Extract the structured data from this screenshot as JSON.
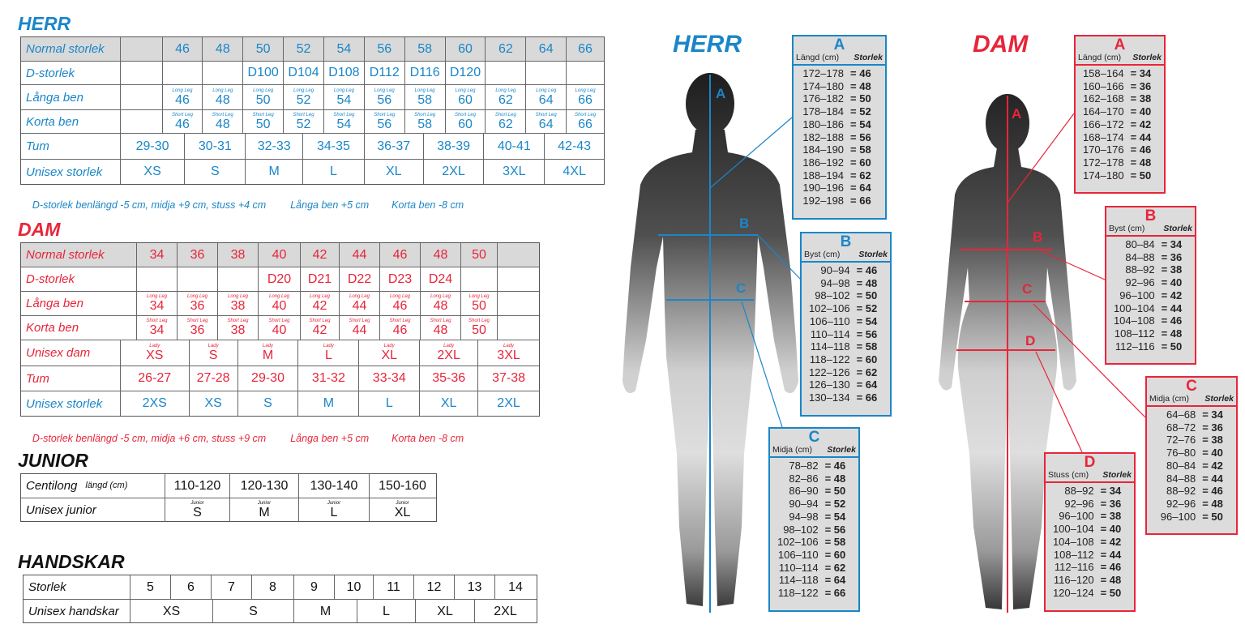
{
  "colors": {
    "herr": "#1a86c8",
    "dam": "#e8253a"
  },
  "herr": {
    "title": "HERR",
    "rows": [
      [
        "Normal storlek",
        "",
        "46",
        "48",
        "50",
        "52",
        "54",
        "56",
        "58",
        "60",
        "62",
        "64",
        "66"
      ],
      [
        "D-storlek",
        "",
        "",
        "",
        "D100",
        "D104",
        "D108",
        "D112",
        "D116",
        "D120",
        "",
        "",
        ""
      ],
      [
        "Långa ben",
        "",
        {
          "s": "Long Leg",
          "v": "46"
        },
        {
          "s": "Long Leg",
          "v": "48"
        },
        {
          "s": "Long Leg",
          "v": "50"
        },
        {
          "s": "Long Leg",
          "v": "52"
        },
        {
          "s": "Long Leg",
          "v": "54"
        },
        {
          "s": "Long Leg",
          "v": "56"
        },
        {
          "s": "Long Leg",
          "v": "58"
        },
        {
          "s": "Long Leg",
          "v": "60"
        },
        {
          "s": "Long Leg",
          "v": "62"
        },
        {
          "s": "Long Leg",
          "v": "64"
        },
        {
          "s": "Long Leg",
          "v": "66"
        }
      ],
      [
        "Korta ben",
        "",
        {
          "s": "Short Leg",
          "v": "46"
        },
        {
          "s": "Short Leg",
          "v": "48"
        },
        {
          "s": "Short Leg",
          "v": "50"
        },
        {
          "s": "Short Leg",
          "v": "52"
        },
        {
          "s": "Short Leg",
          "v": "54"
        },
        {
          "s": "Short Leg",
          "v": "56"
        },
        {
          "s": "Short Leg",
          "v": "58"
        },
        {
          "s": "Short Leg",
          "v": "60"
        },
        {
          "s": "Short Leg",
          "v": "62"
        },
        {
          "s": "Short Leg",
          "v": "64"
        },
        {
          "s": "Short Leg",
          "v": "66"
        }
      ],
      [
        "Tum",
        "29-30",
        "30-31",
        "32-33",
        "34-35",
        "36-37",
        "38-39",
        "40-41",
        "42-43"
      ],
      [
        "Unisex storlek",
        "XS",
        "S",
        "M",
        "L",
        "XL",
        "2XL",
        "3XL",
        "4XL"
      ]
    ],
    "notes": [
      "D-storlek benlängd -5 cm, midja +9 cm, stuss +4 cm",
      "Långa ben +5 cm",
      "Korta ben -8 cm"
    ]
  },
  "dam": {
    "title": "DAM",
    "rows": [
      [
        "Normal storlek",
        "34",
        "36",
        "38",
        "40",
        "42",
        "44",
        "46",
        "48",
        "50",
        ""
      ],
      [
        "D-storlek",
        "",
        "",
        "",
        "D20",
        "D21",
        "D22",
        "D23",
        "D24",
        "",
        ""
      ],
      [
        "Långa ben",
        {
          "s": "Long Leg",
          "v": "34"
        },
        {
          "s": "Long Leg",
          "v": "36"
        },
        {
          "s": "Long Leg",
          "v": "38"
        },
        {
          "s": "Long Leg",
          "v": "40"
        },
        {
          "s": "Long Leg",
          "v": "42"
        },
        {
          "s": "Long Leg",
          "v": "44"
        },
        {
          "s": "Long Leg",
          "v": "46"
        },
        {
          "s": "Long Leg",
          "v": "48"
        },
        {
          "s": "Long Leg",
          "v": "50"
        },
        ""
      ],
      [
        "Korta ben",
        {
          "s": "Short Leg",
          "v": "34"
        },
        {
          "s": "Short Leg",
          "v": "36"
        },
        {
          "s": "Short Leg",
          "v": "38"
        },
        {
          "s": "Short Leg",
          "v": "40"
        },
        {
          "s": "Short Leg",
          "v": "42"
        },
        {
          "s": "Short Leg",
          "v": "44"
        },
        {
          "s": "Short Leg",
          "v": "46"
        },
        {
          "s": "Short Leg",
          "v": "48"
        },
        {
          "s": "Short Leg",
          "v": "50"
        },
        ""
      ],
      [
        "Unisex dam",
        {
          "s": "Lady",
          "v": "XS"
        },
        {
          "s": "Lady",
          "v": "S"
        },
        {
          "s": "Lady",
          "v": "M"
        },
        {
          "s": "Lady",
          "v": "L"
        },
        {
          "s": "Lady",
          "v": "XL"
        },
        {
          "s": "Lady",
          "v": "2XL"
        },
        {
          "s": "Lady",
          "v": "3XL"
        }
      ],
      [
        "Tum",
        "26-27",
        "27-28",
        "29-30",
        "31-32",
        "33-34",
        "35-36",
        "37-38"
      ],
      [
        "Unisex storlek",
        "2XS",
        "XS",
        "S",
        "M",
        "L",
        "XL",
        "2XL"
      ]
    ],
    "notes": [
      "D-storlek benlängd -5 cm, midja +6 cm, stuss +9 cm",
      "Långa ben +5 cm",
      "Korta ben -8 cm"
    ]
  },
  "junior": {
    "title": "JUNIOR",
    "rows": [
      [
        {
          "l": "Centilong",
          "ls": "längd (cm)"
        },
        "110-120",
        "120-130",
        "130-140",
        "150-160"
      ],
      [
        "Unisex junior",
        {
          "s": "Junior",
          "v": "S"
        },
        {
          "s": "Junior",
          "v": "M"
        },
        {
          "s": "Junior",
          "v": "L"
        },
        {
          "s": "Junior",
          "v": "XL"
        }
      ]
    ]
  },
  "handskar": {
    "title": "HANDSKAR",
    "rows": [
      [
        "Storlek",
        "5",
        "6",
        "7",
        "8",
        "9",
        "10",
        "11",
        "12",
        "13",
        "14"
      ],
      [
        "Unisex handskar",
        "XS",
        "S",
        "M",
        "L",
        "XL",
        "2XL"
      ]
    ]
  },
  "figures": {
    "herr": {
      "title": "HERR",
      "labels": [
        "A",
        "B",
        "C"
      ],
      "boxes": [
        {
          "letter": "A",
          "col1": "Längd (cm)",
          "col2": "Storlek",
          "rows": [
            [
              "172–178",
              "= 46"
            ],
            [
              "174–180",
              "= 48"
            ],
            [
              "176–182",
              "= 50"
            ],
            [
              "178–184",
              "= 52"
            ],
            [
              "180–186",
              "= 54"
            ],
            [
              "182–188",
              "= 56"
            ],
            [
              "184–190",
              "= 58"
            ],
            [
              "186–192",
              "= 60"
            ],
            [
              "188–194",
              "= 62"
            ],
            [
              "190–196",
              "= 64"
            ],
            [
              "192–198",
              "= 66"
            ]
          ]
        },
        {
          "letter": "B",
          "col1": "Byst (cm)",
          "col2": "Storlek",
          "rows": [
            [
              "90–94",
              "= 46"
            ],
            [
              "94–98",
              "= 48"
            ],
            [
              "98–102",
              "= 50"
            ],
            [
              "102–106",
              "= 52"
            ],
            [
              "106–110",
              "= 54"
            ],
            [
              "110–114",
              "= 56"
            ],
            [
              "114–118",
              "= 58"
            ],
            [
              "118–122",
              "= 60"
            ],
            [
              "122–126",
              "= 62"
            ],
            [
              "126–130",
              "= 64"
            ],
            [
              "130–134",
              "= 66"
            ]
          ]
        },
        {
          "letter": "C",
          "col1": "Midja (cm)",
          "col2": "Storlek",
          "rows": [
            [
              "78–82",
              "= 46"
            ],
            [
              "82–86",
              "= 48"
            ],
            [
              "86–90",
              "= 50"
            ],
            [
              "90–94",
              "= 52"
            ],
            [
              "94–98",
              "= 54"
            ],
            [
              "98–102",
              "= 56"
            ],
            [
              "102–106",
              "= 58"
            ],
            [
              "106–110",
              "= 60"
            ],
            [
              "110–114",
              "= 62"
            ],
            [
              "114–118",
              "= 64"
            ],
            [
              "118–122",
              "= 66"
            ]
          ]
        }
      ]
    },
    "dam": {
      "title": "DAM",
      "labels": [
        "A",
        "B",
        "C",
        "D"
      ],
      "boxes": [
        {
          "letter": "A",
          "col1": "Längd (cm)",
          "col2": "Storlek",
          "rows": [
            [
              "158–164",
              "= 34"
            ],
            [
              "160–166",
              "= 36"
            ],
            [
              "162–168",
              "= 38"
            ],
            [
              "164–170",
              "= 40"
            ],
            [
              "166–172",
              "= 42"
            ],
            [
              "168–174",
              "= 44"
            ],
            [
              "170–176",
              "= 46"
            ],
            [
              "172–178",
              "= 48"
            ],
            [
              "174–180",
              "= 50"
            ]
          ]
        },
        {
          "letter": "B",
          "col1": "Byst (cm)",
          "col2": "Storlek",
          "rows": [
            [
              "80–84",
              "= 34"
            ],
            [
              "84–88",
              "= 36"
            ],
            [
              "88–92",
              "= 38"
            ],
            [
              "92–96",
              "= 40"
            ],
            [
              "96–100",
              "= 42"
            ],
            [
              "100–104",
              "= 44"
            ],
            [
              "104–108",
              "= 46"
            ],
            [
              "108–112",
              "= 48"
            ],
            [
              "112–116",
              "= 50"
            ]
          ]
        },
        {
          "letter": "C",
          "col1": "Midja (cm)",
          "col2": "Storlek",
          "rows": [
            [
              "64–68",
              "= 34"
            ],
            [
              "68–72",
              "= 36"
            ],
            [
              "72–76",
              "= 38"
            ],
            [
              "76–80",
              "= 40"
            ],
            [
              "80–84",
              "= 42"
            ],
            [
              "84–88",
              "= 44"
            ],
            [
              "88–92",
              "= 46"
            ],
            [
              "92–96",
              "= 48"
            ],
            [
              "96–100",
              "= 50"
            ]
          ]
        },
        {
          "letter": "D",
          "col1": "Stuss (cm)",
          "col2": "Storlek",
          "rows": [
            [
              "88–92",
              "= 34"
            ],
            [
              "92–96",
              "= 36"
            ],
            [
              "96–100",
              "= 38"
            ],
            [
              "100–104",
              "= 40"
            ],
            [
              "104–108",
              "= 42"
            ],
            [
              "108–112",
              "= 44"
            ],
            [
              "112–116",
              "= 46"
            ],
            [
              "116–120",
              "= 48"
            ],
            [
              "120–124",
              "= 50"
            ]
          ]
        }
      ]
    }
  }
}
